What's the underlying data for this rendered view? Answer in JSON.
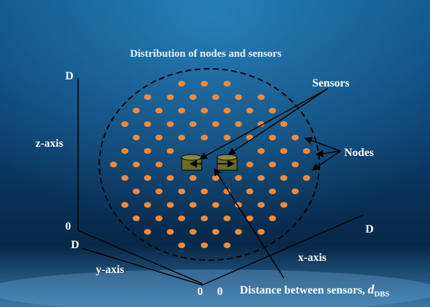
{
  "title": "Distribution of nodes and sensors",
  "labels": {
    "sensors": "Sensors",
    "nodes": "Nodes",
    "distance": "Distance between sensors, ",
    "distance_symbol": "d",
    "distance_subscript": "DBS"
  },
  "axes": {
    "z": {
      "name": "z-axis",
      "max": "D",
      "min": "0"
    },
    "y": {
      "name": "y-axis",
      "max": "D",
      "min": "0"
    },
    "x": {
      "name": "x-axis",
      "max": "D",
      "min": "0"
    }
  }
}
